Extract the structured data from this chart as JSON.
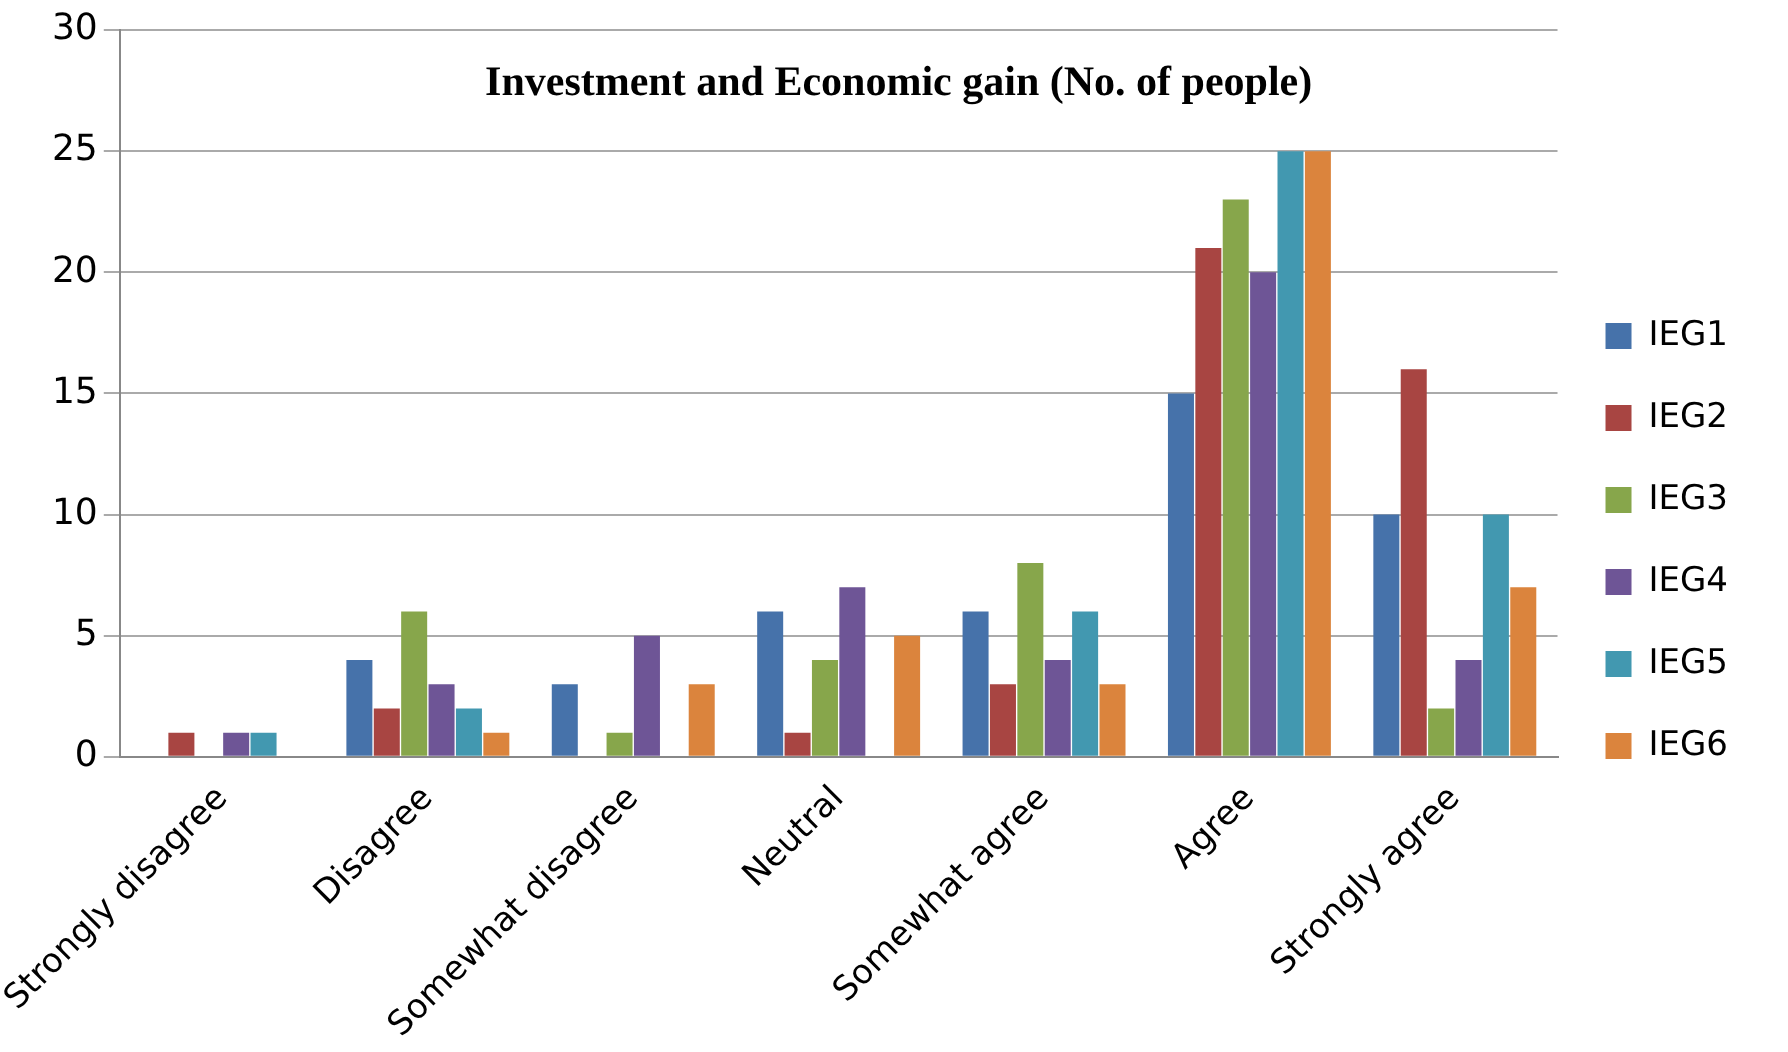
{
  "chart_data": {
    "type": "bar",
    "title": "Investment and Economic gain (No. of people)",
    "categories": [
      "Strongly disagree",
      "Disagree",
      "Somewhat disagree",
      "Neutral",
      "Somewhat agree",
      "Agree",
      "Strongly agree"
    ],
    "series": [
      {
        "name": "IEG1",
        "color": "#4672aa",
        "values": [
          0,
          4,
          3,
          6,
          6,
          15,
          10
        ]
      },
      {
        "name": "IEG2",
        "color": "#a84542",
        "values": [
          1,
          2,
          0,
          1,
          3,
          21,
          16
        ]
      },
      {
        "name": "IEG3",
        "color": "#87a64b",
        "values": [
          0,
          6,
          1,
          4,
          8,
          23,
          2
        ]
      },
      {
        "name": "IEG4",
        "color": "#6e5596",
        "values": [
          1,
          3,
          5,
          7,
          4,
          20,
          4
        ]
      },
      {
        "name": "IEG5",
        "color": "#4298b0",
        "values": [
          1,
          2,
          0,
          0,
          6,
          25,
          10
        ]
      },
      {
        "name": "IEG6",
        "color": "#db843d",
        "values": [
          0,
          1,
          3,
          5,
          3,
          25,
          7
        ]
      }
    ],
    "ylim": [
      0,
      30
    ],
    "yticks": [
      0,
      5,
      10,
      15,
      20,
      25,
      30
    ],
    "grid": "y",
    "legend": "right"
  }
}
